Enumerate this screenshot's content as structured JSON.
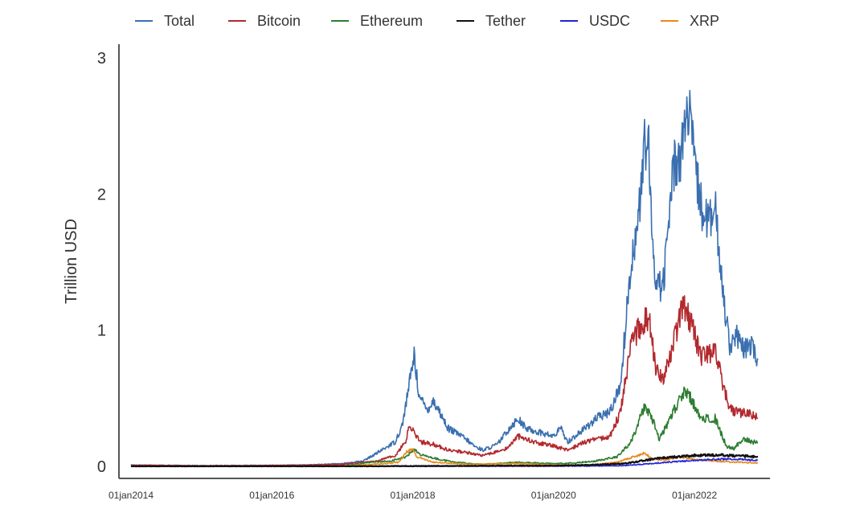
{
  "chart_data": {
    "type": "line",
    "title": "",
    "xlabel": "",
    "ylabel": "Trillion USD",
    "ylim": [
      0,
      3
    ],
    "xlim": [
      2014.0,
      2022.9
    ],
    "grid": false,
    "legend_position": "top",
    "yticks": [
      {
        "value": 0,
        "label": "0"
      },
      {
        "value": 1,
        "label": "1"
      },
      {
        "value": 2,
        "label": "2"
      },
      {
        "value": 3,
        "label": "3"
      }
    ],
    "xticks": [
      {
        "value": 2014.0,
        "label": "01jan2014"
      },
      {
        "value": 2016.0,
        "label": "01jan2016"
      },
      {
        "value": 2018.0,
        "label": "01jan2018"
      },
      {
        "value": 2020.0,
        "label": "01jan2020"
      },
      {
        "value": 2022.0,
        "label": "01jan2022"
      }
    ],
    "series": [
      {
        "name": "Total",
        "color": "#3a6fb0",
        "points": [
          [
            2014.0,
            0.01
          ],
          [
            2015.0,
            0.005
          ],
          [
            2016.0,
            0.007
          ],
          [
            2016.5,
            0.01
          ],
          [
            2017.0,
            0.02
          ],
          [
            2017.3,
            0.04
          ],
          [
            2017.5,
            0.1
          ],
          [
            2017.75,
            0.18
          ],
          [
            2017.85,
            0.3
          ],
          [
            2017.95,
            0.6
          ],
          [
            2018.02,
            0.82
          ],
          [
            2018.05,
            0.68
          ],
          [
            2018.1,
            0.5
          ],
          [
            2018.2,
            0.42
          ],
          [
            2018.3,
            0.48
          ],
          [
            2018.4,
            0.38
          ],
          [
            2018.5,
            0.28
          ],
          [
            2018.7,
            0.22
          ],
          [
            2018.9,
            0.14
          ],
          [
            2019.0,
            0.12
          ],
          [
            2019.2,
            0.16
          ],
          [
            2019.4,
            0.3
          ],
          [
            2019.5,
            0.35
          ],
          [
            2019.6,
            0.28
          ],
          [
            2019.8,
            0.25
          ],
          [
            2020.0,
            0.22
          ],
          [
            2020.1,
            0.28
          ],
          [
            2020.2,
            0.18
          ],
          [
            2020.4,
            0.26
          ],
          [
            2020.6,
            0.35
          ],
          [
            2020.8,
            0.4
          ],
          [
            2020.95,
            0.6
          ],
          [
            2021.1,
            1.5
          ],
          [
            2021.2,
            1.8
          ],
          [
            2021.3,
            2.4
          ],
          [
            2021.35,
            2.3
          ],
          [
            2021.4,
            1.6
          ],
          [
            2021.45,
            1.4
          ],
          [
            2021.55,
            1.3
          ],
          [
            2021.6,
            1.6
          ],
          [
            2021.7,
            2.2
          ],
          [
            2021.8,
            2.3
          ],
          [
            2021.85,
            2.45
          ],
          [
            2021.9,
            2.6
          ],
          [
            2021.95,
            2.5
          ],
          [
            2022.0,
            2.2
          ],
          [
            2022.1,
            1.9
          ],
          [
            2022.2,
            1.8
          ],
          [
            2022.3,
            1.85
          ],
          [
            2022.4,
            1.3
          ],
          [
            2022.5,
            0.9
          ],
          [
            2022.6,
            0.95
          ],
          [
            2022.7,
            0.85
          ],
          [
            2022.8,
            0.9
          ],
          [
            2022.9,
            0.78
          ]
        ]
      },
      {
        "name": "Bitcoin",
        "color": "#b2292e",
        "points": [
          [
            2014.0,
            0.008
          ],
          [
            2015.0,
            0.004
          ],
          [
            2016.0,
            0.006
          ],
          [
            2016.5,
            0.009
          ],
          [
            2017.0,
            0.015
          ],
          [
            2017.5,
            0.04
          ],
          [
            2017.75,
            0.08
          ],
          [
            2017.9,
            0.18
          ],
          [
            2017.95,
            0.3
          ],
          [
            2018.02,
            0.26
          ],
          [
            2018.1,
            0.18
          ],
          [
            2018.3,
            0.16
          ],
          [
            2018.5,
            0.12
          ],
          [
            2018.8,
            0.1
          ],
          [
            2019.0,
            0.08
          ],
          [
            2019.3,
            0.12
          ],
          [
            2019.5,
            0.22
          ],
          [
            2019.7,
            0.18
          ],
          [
            2020.0,
            0.15
          ],
          [
            2020.2,
            0.12
          ],
          [
            2020.4,
            0.17
          ],
          [
            2020.6,
            0.2
          ],
          [
            2020.8,
            0.22
          ],
          [
            2020.95,
            0.4
          ],
          [
            2021.1,
            0.9
          ],
          [
            2021.25,
            1.05
          ],
          [
            2021.35,
            1.1
          ],
          [
            2021.45,
            0.7
          ],
          [
            2021.55,
            0.65
          ],
          [
            2021.7,
            0.9
          ],
          [
            2021.8,
            1.1
          ],
          [
            2021.85,
            1.2
          ],
          [
            2021.95,
            1.05
          ],
          [
            2022.1,
            0.8
          ],
          [
            2022.3,
            0.85
          ],
          [
            2022.4,
            0.6
          ],
          [
            2022.5,
            0.42
          ],
          [
            2022.6,
            0.4
          ],
          [
            2022.8,
            0.38
          ],
          [
            2022.9,
            0.35
          ]
        ]
      },
      {
        "name": "Ethereum",
        "color": "#2e7d32",
        "points": [
          [
            2014.0,
            0.0
          ],
          [
            2015.5,
            0.0
          ],
          [
            2016.5,
            0.001
          ],
          [
            2017.0,
            0.002
          ],
          [
            2017.4,
            0.03
          ],
          [
            2017.7,
            0.04
          ],
          [
            2017.9,
            0.07
          ],
          [
            2018.02,
            0.12
          ],
          [
            2018.1,
            0.09
          ],
          [
            2018.3,
            0.06
          ],
          [
            2018.5,
            0.04
          ],
          [
            2018.8,
            0.02
          ],
          [
            2019.0,
            0.015
          ],
          [
            2019.5,
            0.03
          ],
          [
            2020.0,
            0.02
          ],
          [
            2020.3,
            0.025
          ],
          [
            2020.6,
            0.04
          ],
          [
            2020.9,
            0.07
          ],
          [
            2021.1,
            0.18
          ],
          [
            2021.3,
            0.45
          ],
          [
            2021.4,
            0.35
          ],
          [
            2021.5,
            0.2
          ],
          [
            2021.6,
            0.3
          ],
          [
            2021.75,
            0.45
          ],
          [
            2021.85,
            0.55
          ],
          [
            2021.95,
            0.5
          ],
          [
            2022.1,
            0.35
          ],
          [
            2022.3,
            0.35
          ],
          [
            2022.45,
            0.15
          ],
          [
            2022.55,
            0.13
          ],
          [
            2022.7,
            0.2
          ],
          [
            2022.9,
            0.17
          ]
        ]
      },
      {
        "name": "Tether",
        "color": "#111111",
        "points": [
          [
            2014.0,
            0.0
          ],
          [
            2017.0,
            0.001
          ],
          [
            2018.0,
            0.002
          ],
          [
            2019.0,
            0.004
          ],
          [
            2020.0,
            0.005
          ],
          [
            2020.5,
            0.01
          ],
          [
            2021.0,
            0.02
          ],
          [
            2021.5,
            0.06
          ],
          [
            2022.0,
            0.08
          ],
          [
            2022.4,
            0.083
          ],
          [
            2022.9,
            0.07
          ]
        ]
      },
      {
        "name": "USDC",
        "color": "#2323d6",
        "points": [
          [
            2014.0,
            0.0
          ],
          [
            2018.8,
            0.0
          ],
          [
            2019.5,
            0.001
          ],
          [
            2020.5,
            0.002
          ],
          [
            2021.0,
            0.005
          ],
          [
            2021.5,
            0.025
          ],
          [
            2022.0,
            0.045
          ],
          [
            2022.5,
            0.055
          ],
          [
            2022.9,
            0.045
          ]
        ]
      },
      {
        "name": "XRP",
        "color": "#e88a1a",
        "points": [
          [
            2014.0,
            0.0
          ],
          [
            2016.5,
            0.001
          ],
          [
            2017.0,
            0.002
          ],
          [
            2017.3,
            0.01
          ],
          [
            2017.6,
            0.02
          ],
          [
            2017.8,
            0.03
          ],
          [
            2017.9,
            0.1
          ],
          [
            2018.0,
            0.13
          ],
          [
            2018.05,
            0.07
          ],
          [
            2018.3,
            0.03
          ],
          [
            2018.8,
            0.015
          ],
          [
            2019.5,
            0.02
          ],
          [
            2020.0,
            0.01
          ],
          [
            2020.5,
            0.01
          ],
          [
            2020.9,
            0.03
          ],
          [
            2021.2,
            0.08
          ],
          [
            2021.3,
            0.1
          ],
          [
            2021.4,
            0.05
          ],
          [
            2021.6,
            0.05
          ],
          [
            2021.7,
            0.06
          ],
          [
            2021.8,
            0.07
          ],
          [
            2022.0,
            0.05
          ],
          [
            2022.4,
            0.035
          ],
          [
            2022.9,
            0.025
          ]
        ]
      }
    ]
  }
}
